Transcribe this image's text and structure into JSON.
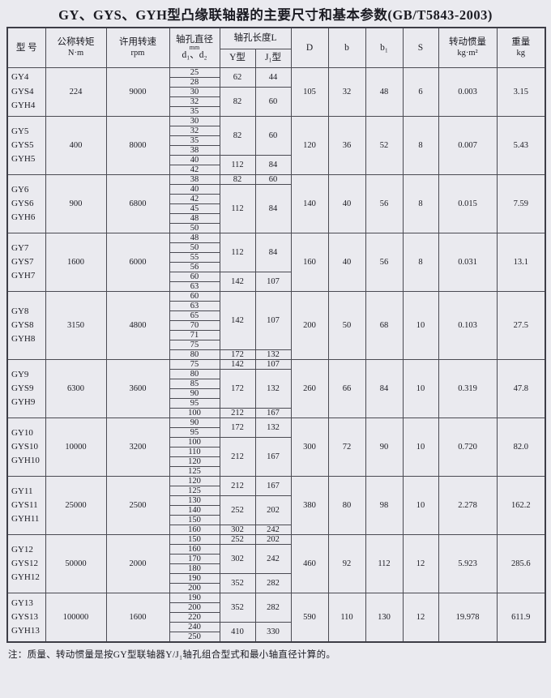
{
  "title": "GY、GYS、GYH型凸缘联轴器的主要尺寸和基本参数(GB/T5843-2003)",
  "note": "注：质量、转动惯量是按GY型联轴器Y/J₁轴孔组合型式和最小轴直径计算的。",
  "colors": {
    "page_bg": "#eaeaef",
    "border": "#4a4a52",
    "text": "#1b1b22"
  },
  "table": {
    "header": {
      "model": "型 号",
      "torque_line1": "公称转矩",
      "torque_unit": "N·m",
      "speed_line1": "许用转速",
      "speed_unit": "rpm",
      "bore_diameter_line1": "轴孔直径",
      "bore_diameter_line2": "mm",
      "bore_diameter_line3": "d₁、d₂",
      "bore_length": "轴孔长度L",
      "y_type": "Y型",
      "j_type": "J₁型",
      "D": "D",
      "b": "b",
      "b1": "b₁",
      "S": "S",
      "inertia_line1": "转动惯量",
      "inertia_unit": "kg·m²",
      "weight_line1": "重量",
      "weight_unit": "kg"
    },
    "blocks": [
      {
        "models": [
          "GY4",
          "GYS4",
          "GYH4"
        ],
        "torque": "224",
        "speed": "9000",
        "groups": [
          {
            "diameters": [
              "25",
              "28"
            ],
            "y": "62",
            "j": "44"
          },
          {
            "diameters": [
              "30",
              "32",
              "35"
            ],
            "y": "82",
            "j": "60"
          }
        ],
        "D": "105",
        "b": "32",
        "b1": "48",
        "S": "6",
        "inertia": "0.003",
        "weight": "3.15"
      },
      {
        "models": [
          "GY5",
          "GYS5",
          "GYH5"
        ],
        "torque": "400",
        "speed": "8000",
        "groups": [
          {
            "diameters": [
              "30",
              "32",
              "35",
              "38"
            ],
            "y": "82",
            "j": "60"
          },
          {
            "diameters": [
              "40",
              "42"
            ],
            "y": "112",
            "j": "84"
          }
        ],
        "D": "120",
        "b": "36",
        "b1": "52",
        "S": "8",
        "inertia": "0.007",
        "weight": "5.43"
      },
      {
        "models": [
          "GY6",
          "GYS6",
          "GYH6"
        ],
        "torque": "900",
        "speed": "6800",
        "groups": [
          {
            "diameters": [
              "38"
            ],
            "y": "82",
            "j": "60"
          },
          {
            "diameters": [
              "40",
              "42",
              "45",
              "48",
              "50"
            ],
            "y": "112",
            "j": "84"
          }
        ],
        "D": "140",
        "b": "40",
        "b1": "56",
        "S": "8",
        "inertia": "0.015",
        "weight": "7.59"
      },
      {
        "models": [
          "GY7",
          "GYS7",
          "GYH7"
        ],
        "torque": "1600",
        "speed": "6000",
        "groups": [
          {
            "diameters": [
              "48",
              "50",
              "55",
              "56"
            ],
            "y": "112",
            "j": "84"
          },
          {
            "diameters": [
              "60",
              "63"
            ],
            "y": "142",
            "j": "107"
          }
        ],
        "D": "160",
        "b": "40",
        "b1": "56",
        "S": "8",
        "inertia": "0.031",
        "weight": "13.1"
      },
      {
        "models": [
          "GY8",
          "GYS8",
          "GYH8"
        ],
        "torque": "3150",
        "speed": "4800",
        "groups": [
          {
            "diameters": [
              "60",
              "63",
              "65",
              "70",
              "71",
              "75"
            ],
            "y": "142",
            "j": "107"
          },
          {
            "diameters": [
              "80"
            ],
            "y": "172",
            "j": "132"
          }
        ],
        "D": "200",
        "b": "50",
        "b1": "68",
        "S": "10",
        "inertia": "0.103",
        "weight": "27.5"
      },
      {
        "models": [
          "GY9",
          "GYS9",
          "GYH9"
        ],
        "torque": "6300",
        "speed": "3600",
        "groups": [
          {
            "diameters": [
              "75"
            ],
            "y": "142",
            "j": "107"
          },
          {
            "diameters": [
              "80",
              "85",
              "90",
              "95"
            ],
            "y": "172",
            "j": "132"
          },
          {
            "diameters": [
              "100"
            ],
            "y": "212",
            "j": "167"
          }
        ],
        "D": "260",
        "b": "66",
        "b1": "84",
        "S": "10",
        "inertia": "0.319",
        "weight": "47.8"
      },
      {
        "models": [
          "GY10",
          "GYS10",
          "GYH10"
        ],
        "torque": "10000",
        "speed": "3200",
        "groups": [
          {
            "diameters": [
              "90",
              "95"
            ],
            "y": "172",
            "j": "132"
          },
          {
            "diameters": [
              "100",
              "110",
              "120",
              "125"
            ],
            "y": "212",
            "j": "167"
          }
        ],
        "D": "300",
        "b": "72",
        "b1": "90",
        "S": "10",
        "inertia": "0.720",
        "weight": "82.0"
      },
      {
        "models": [
          "GY11",
          "GYS11",
          "GYH11"
        ],
        "torque": "25000",
        "speed": "2500",
        "groups": [
          {
            "diameters": [
              "120",
              "125"
            ],
            "y": "212",
            "j": "167"
          },
          {
            "diameters": [
              "130",
              "140",
              "150"
            ],
            "y": "252",
            "j": "202"
          },
          {
            "diameters": [
              "160"
            ],
            "y": "302",
            "j": "242"
          }
        ],
        "D": "380",
        "b": "80",
        "b1": "98",
        "S": "10",
        "inertia": "2.278",
        "weight": "162.2"
      },
      {
        "models": [
          "GY12",
          "GYS12",
          "GYH12"
        ],
        "torque": "50000",
        "speed": "2000",
        "groups": [
          {
            "diameters": [
              "150"
            ],
            "y": "252",
            "j": "202"
          },
          {
            "diameters": [
              "160",
              "170",
              "180"
            ],
            "y": "302",
            "j": "242"
          },
          {
            "diameters": [
              "190",
              "200"
            ],
            "y": "352",
            "j": "282"
          }
        ],
        "D": "460",
        "b": "92",
        "b1": "112",
        "S": "12",
        "inertia": "5.923",
        "weight": "285.6"
      },
      {
        "models": [
          "GY13",
          "GYS13",
          "GYH13"
        ],
        "torque": "100000",
        "speed": "1600",
        "groups": [
          {
            "diameters": [
              "190",
              "200",
              "220"
            ],
            "y": "352",
            "j": "282"
          },
          {
            "diameters": [
              "240",
              "250"
            ],
            "y": "410",
            "j": "330"
          }
        ],
        "D": "590",
        "b": "110",
        "b1": "130",
        "S": "12",
        "inertia": "19.978",
        "weight": "611.9"
      }
    ]
  }
}
